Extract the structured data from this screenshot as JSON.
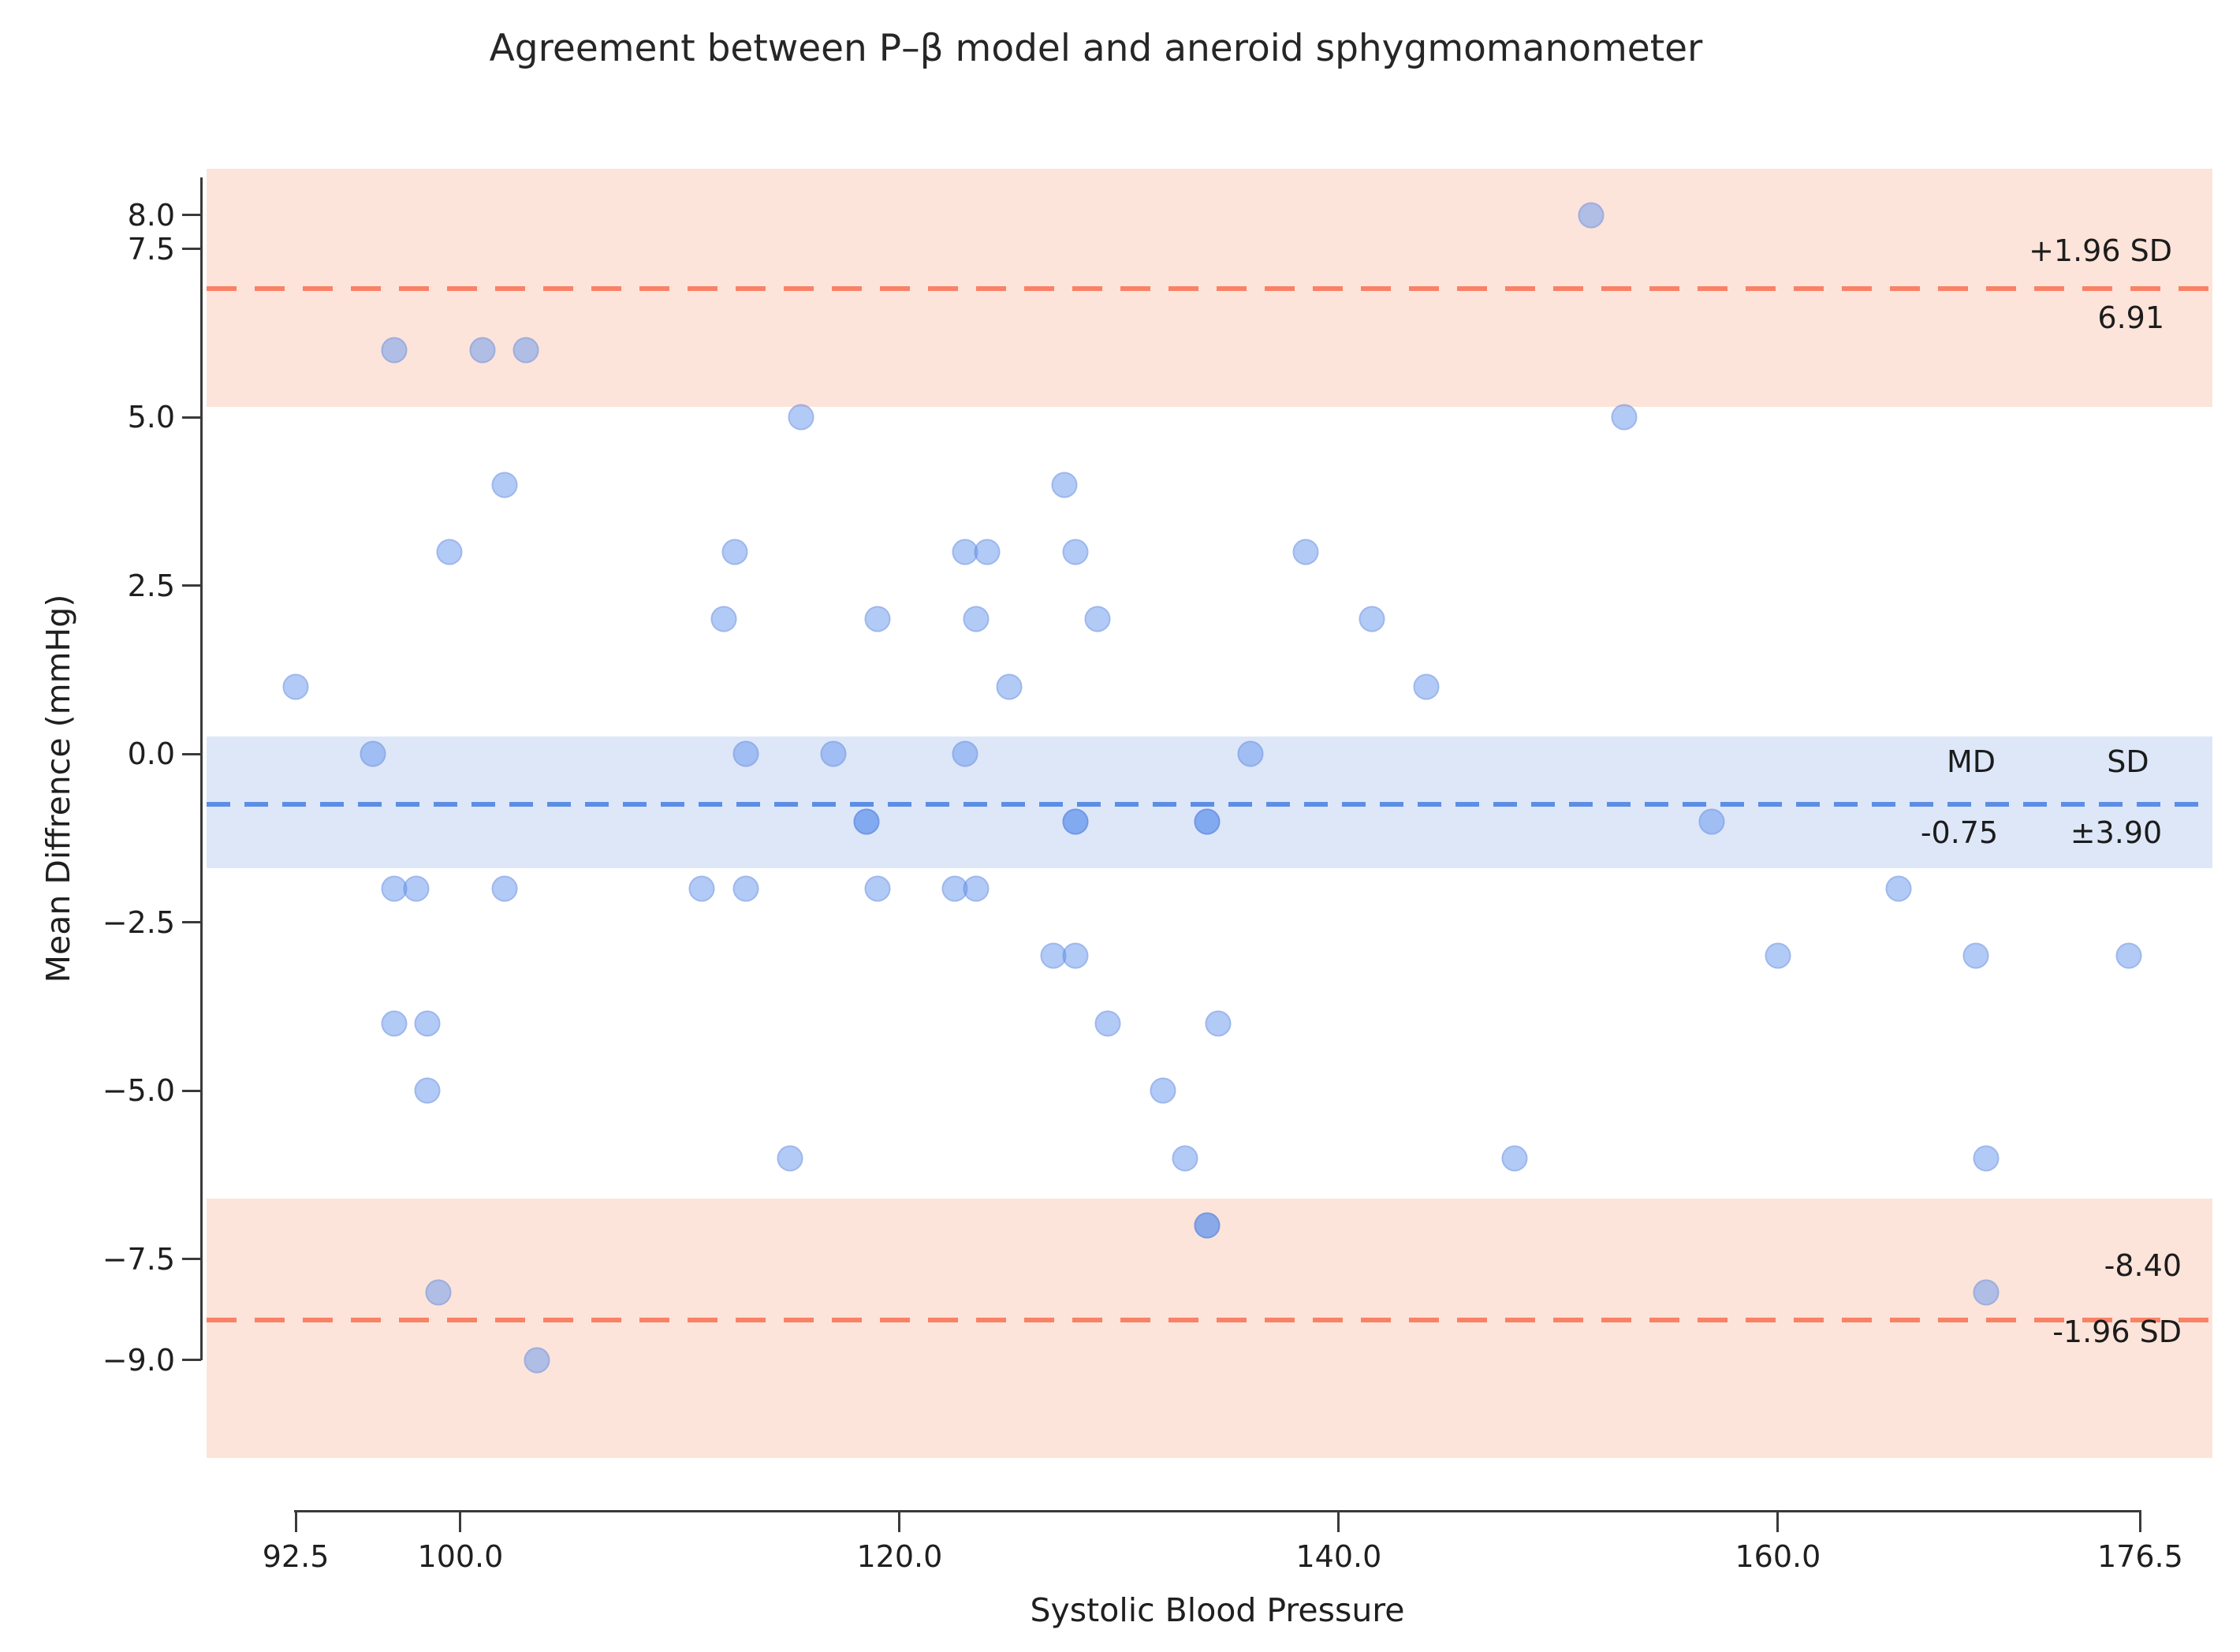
{
  "title": "Agreement between P–β model and aneroid sphygmomanometer",
  "axes": {
    "x": {
      "label": "Systolic Blood Pressure"
    },
    "y": {
      "label": "Mean Diffrence (mmHg)"
    }
  },
  "annotations": {
    "upper_loa_label": "+1.96 SD",
    "upper_loa_value": "6.91",
    "md_header": "MD",
    "sd_header": "SD",
    "md_value": "-0.75",
    "sd_value": "±3.90",
    "lower_loa_value": "-8.40",
    "lower_loa_label": "-1.96 SD"
  },
  "colors": {
    "upper_lower_line": "#fa8166",
    "mean_line": "#5c8ee6",
    "loa_band": "#fce4da",
    "mean_band": "#dde7f8",
    "point": "#6495ed",
    "text": "#1f1f1f"
  },
  "chart_data": {
    "type": "scatter",
    "title": "Agreement between P–β model and aneroid sphygmomanometer",
    "xlabel": "Systolic Blood Pressure",
    "ylabel": "Mean Diffrence (mmHg)",
    "xlim": [
      88.44,
      179.79
    ],
    "ylim": [
      -11.25,
      9.44
    ],
    "grid": false,
    "legend": "none",
    "x_ticks": {
      "values": [
        92.5,
        100.0,
        120.0,
        140.0,
        160.0,
        176.5
      ],
      "labels": [
        "92.5",
        "100.0",
        "120.0",
        "140.0",
        "160.0",
        "176.5"
      ]
    },
    "y_ticks": {
      "values": [
        8.0,
        7.5,
        5.0,
        2.5,
        0.0,
        -2.5,
        -5.0,
        -7.5,
        -9.0
      ],
      "labels": [
        "8.0",
        "7.5",
        "5.0",
        "2.5",
        "0.0",
        "−2.5",
        "−5.0",
        "−7.5",
        "−9.0"
      ]
    },
    "mean_difference": -0.75,
    "sd": 3.9,
    "upper_loa": 6.91,
    "lower_loa": -8.4,
    "lines": [
      {
        "y": 6.91,
        "color": "orange",
        "style": "dashed",
        "name": "upper-limit-line"
      },
      {
        "y": -0.75,
        "color": "blue",
        "style": "dashed",
        "name": "mean-line"
      },
      {
        "y": -8.4,
        "color": "orange",
        "style": "dashed",
        "name": "lower-limit-line"
      }
    ],
    "bands": [
      {
        "y0": 5.15,
        "y1": 8.69,
        "color": "pink",
        "name": "upper-loa-ci-band"
      },
      {
        "y0": -1.7,
        "y1": 0.26,
        "color": "blue",
        "name": "mean-ci-band"
      },
      {
        "y0": -10.45,
        "y1": -6.6,
        "color": "pink",
        "name": "lower-loa-ci-band"
      }
    ],
    "points": [
      [
        151.5,
        8
      ],
      [
        97,
        6
      ],
      [
        101,
        6
      ],
      [
        103,
        6
      ],
      [
        115.5,
        5
      ],
      [
        153,
        5
      ],
      [
        102,
        4
      ],
      [
        127.5,
        4
      ],
      [
        99.5,
        3
      ],
      [
        112.5,
        3
      ],
      [
        123,
        3
      ],
      [
        124,
        3
      ],
      [
        128,
        3
      ],
      [
        138.5,
        3
      ],
      [
        112,
        2
      ],
      [
        119,
        2
      ],
      [
        123.5,
        2
      ],
      [
        129,
        2
      ],
      [
        141.5,
        2
      ],
      [
        92.5,
        1
      ],
      [
        125,
        1
      ],
      [
        144,
        1
      ],
      [
        96,
        0
      ],
      [
        113,
        0
      ],
      [
        117,
        0
      ],
      [
        123,
        0
      ],
      [
        136,
        0
      ],
      [
        118.5,
        -1,
        2
      ],
      [
        128,
        -1,
        2
      ],
      [
        134,
        -1,
        2
      ],
      [
        157,
        -1
      ],
      [
        97,
        -2
      ],
      [
        98,
        -2
      ],
      [
        102,
        -2
      ],
      [
        111,
        -2
      ],
      [
        113,
        -2
      ],
      [
        119,
        -2
      ],
      [
        122.5,
        -2
      ],
      [
        123.5,
        -2
      ],
      [
        165.5,
        -2
      ],
      [
        127,
        -3
      ],
      [
        128,
        -3
      ],
      [
        160,
        -3
      ],
      [
        169,
        -3
      ],
      [
        176,
        -3
      ],
      [
        97,
        -4
      ],
      [
        98.5,
        -4
      ],
      [
        129.5,
        -4
      ],
      [
        134.5,
        -4
      ],
      [
        98.5,
        -5
      ],
      [
        132,
        -5
      ],
      [
        115,
        -6
      ],
      [
        133,
        -6
      ],
      [
        148,
        -6
      ],
      [
        169.5,
        -6
      ],
      [
        134,
        -7,
        2
      ],
      [
        99,
        -8
      ],
      [
        169.5,
        -8
      ],
      [
        103.5,
        -9
      ]
    ]
  }
}
